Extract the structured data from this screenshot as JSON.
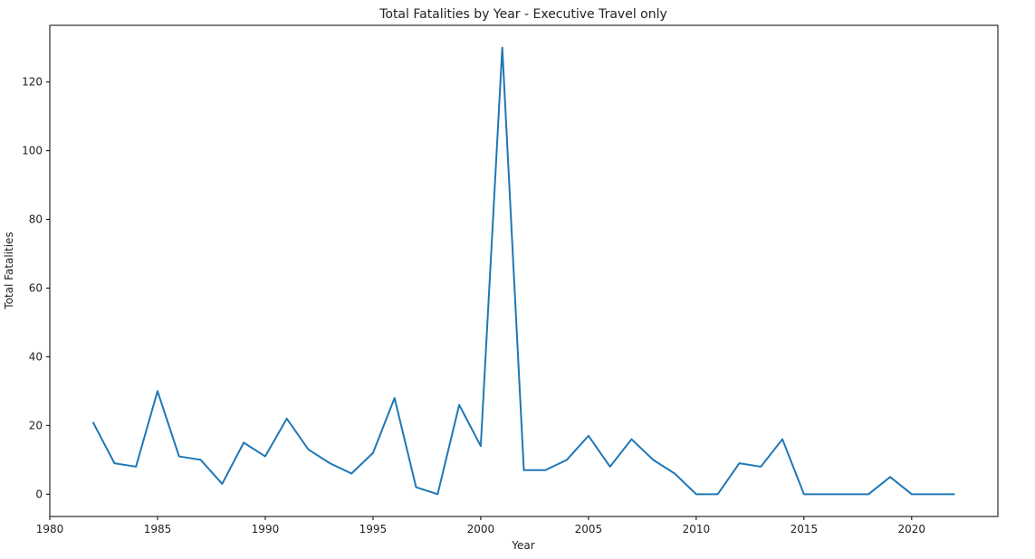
{
  "chart_data": {
    "type": "line",
    "title": "Total Fatalities by Year - Executive Travel only",
    "xlabel": "Year",
    "ylabel": "Total Fatalities",
    "xlim": [
      1980,
      2024
    ],
    "ylim": [
      -6.5,
      136.5
    ],
    "xticks": [
      1980,
      1985,
      1990,
      1995,
      2000,
      2005,
      2010,
      2015,
      2020
    ],
    "yticks": [
      0,
      20,
      40,
      60,
      80,
      100,
      120
    ],
    "grid": false,
    "legend": "none",
    "series": [
      {
        "color": "#1f77b4",
        "x": [
          1982,
          1983,
          1984,
          1985,
          1986,
          1987,
          1988,
          1989,
          1990,
          1991,
          1992,
          1993,
          1994,
          1995,
          1996,
          1997,
          1998,
          1999,
          2000,
          2001,
          2002,
          2003,
          2004,
          2005,
          2006,
          2007,
          2008,
          2009,
          2010,
          2011,
          2012,
          2013,
          2014,
          2015,
          2016,
          2017,
          2018,
          2019,
          2020,
          2021,
          2022
        ],
        "y": [
          21,
          9,
          8,
          30,
          11,
          10,
          3,
          15,
          11,
          22,
          13,
          9,
          6,
          12,
          28,
          2,
          0,
          26,
          14,
          130,
          7,
          7,
          10,
          17,
          8,
          16,
          10,
          6,
          0,
          0,
          9,
          8,
          16,
          0,
          0,
          0,
          0,
          5,
          0,
          0,
          0
        ]
      }
    ]
  }
}
